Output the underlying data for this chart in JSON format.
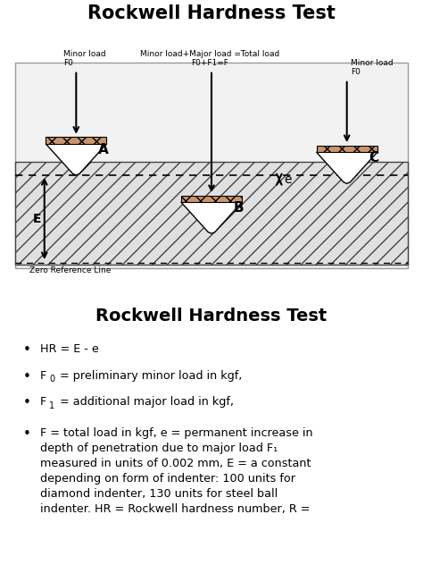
{
  "title_top": "Rockwell Hardness Test",
  "title_bottom": "Rockwell Hardness Test",
  "bg_color": "#ffffff",
  "indenter_top_fill": "#c8956c",
  "material_hatch": "/",
  "label_A": "A",
  "label_B": "B",
  "label_C": "C",
  "label_E": "E",
  "label_e": "e",
  "minor_load_text_left": "Minor load\nF0",
  "minor_load_text_right": "Minor load\nF0",
  "center_text_line1": "Minor load+Major load =Total load",
  "center_text_line2": "F0+F1=F",
  "zero_ref_text": "Zero Reference Line",
  "bullet0": "HR = E - e",
  "bullet1a": "F",
  "bullet1b": "0",
  "bullet1c": " = preliminary minor load in kgf,",
  "bullet2a": "F",
  "bullet2b": "1",
  "bullet2c": " = additional major load in kgf,",
  "bullet3": "F = total load in kgf, e = permanent increase in\ndepth of penetration due to major load F₁\nmeasured in units of 0.002 mm, E = a constant\ndepending on form of indenter: 100 units for\ndiamond indenter, 130 units for steel ball\nindenter. HR = Rockwell hardness number, R ="
}
